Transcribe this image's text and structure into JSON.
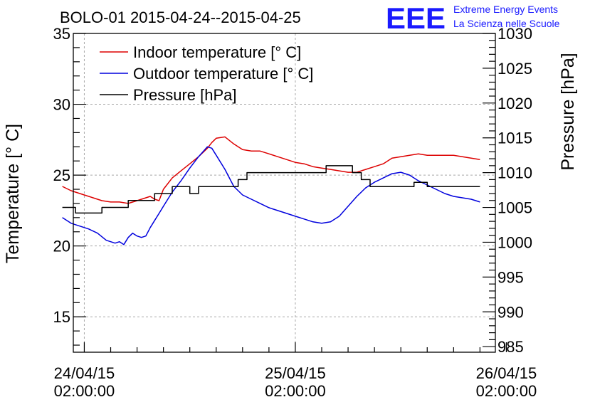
{
  "chart_data": {
    "type": "line",
    "title": "BOLO-01 2015-04-24--2015-04-25",
    "logo": {
      "mark": "EEE",
      "line1": "Extreme Energy Events",
      "line2": "La Scienza nelle Scuole"
    },
    "ylabel": "Temperature [° C]",
    "y2label": "Pressure [hPa]",
    "ylim": [
      12.5,
      35
    ],
    "y2lim": [
      984.2,
      1030
    ],
    "yticks": [
      "15",
      "20",
      "25",
      "30",
      "35"
    ],
    "y2ticks": [
      "985",
      "990",
      "995",
      "1000",
      "1005",
      "1010",
      "1015",
      "1020",
      "1025",
      "1030"
    ],
    "xlim": [
      -1.25,
      46.75
    ],
    "xticks": [
      {
        "x": 0,
        "date": "24/04/15",
        "time": "02:00:00"
      },
      {
        "x": 24,
        "date": "25/04/15",
        "time": "02:00:00"
      },
      {
        "x": 48,
        "date": "26/04/15",
        "time": "02:00:00"
      }
    ],
    "grid": true,
    "legend_position": "top-left",
    "series": [
      {
        "name": "Indoor temperature [° C]",
        "axis": "left",
        "color": "#dd0000",
        "x": [
          -2.5,
          -1.5,
          0,
          1,
          2,
          3,
          4,
          5,
          6,
          7,
          7.5,
          8,
          8.5,
          9,
          10,
          11,
          12,
          13,
          14,
          14.5,
          15,
          16,
          17,
          18,
          19,
          20,
          21,
          22,
          23,
          24,
          25,
          26,
          27,
          28,
          29,
          30,
          31,
          32,
          33,
          34,
          35,
          36,
          37,
          38,
          39,
          40,
          41,
          42,
          43,
          44,
          45
        ],
        "y": [
          24.2,
          23.9,
          23.6,
          23.4,
          23.2,
          23.1,
          23.1,
          23.0,
          23.2,
          23.4,
          23.5,
          23.3,
          23.2,
          24.0,
          24.8,
          25.3,
          25.8,
          26.3,
          26.9,
          27.3,
          27.6,
          27.7,
          27.2,
          26.8,
          26.7,
          26.7,
          26.5,
          26.3,
          26.1,
          25.9,
          25.8,
          25.6,
          25.5,
          25.4,
          25.3,
          25.2,
          25.2,
          25.4,
          25.6,
          25.8,
          26.2,
          26.3,
          26.4,
          26.5,
          26.4,
          26.4,
          26.4,
          26.4,
          26.3,
          26.2,
          26.1
        ]
      },
      {
        "name": "Outdoor temperature [° C]",
        "axis": "left",
        "color": "#0000dd",
        "x": [
          -2.5,
          -1.5,
          -0.5,
          0.5,
          1.5,
          2.5,
          3.5,
          4,
          4.5,
          5,
          5.5,
          6,
          6.5,
          7,
          7.5,
          8,
          8.5,
          9,
          10,
          11,
          12,
          13,
          14,
          14.5,
          15,
          16,
          17,
          18,
          19,
          20,
          21,
          22,
          23,
          24,
          25,
          26,
          27,
          28,
          29,
          30,
          31,
          32,
          33,
          34,
          35,
          36,
          37,
          38,
          39,
          40,
          41,
          42,
          43,
          44,
          45
        ],
        "y": [
          22.0,
          21.6,
          21.4,
          21.2,
          20.9,
          20.4,
          20.2,
          20.3,
          20.1,
          20.6,
          20.9,
          20.7,
          20.6,
          20.7,
          21.3,
          21.8,
          22.3,
          22.8,
          23.8,
          24.6,
          25.5,
          26.3,
          27.0,
          26.9,
          26.4,
          25.4,
          24.2,
          23.6,
          23.3,
          23.0,
          22.7,
          22.5,
          22.3,
          22.1,
          21.9,
          21.7,
          21.6,
          21.7,
          22.1,
          22.8,
          23.5,
          24.1,
          24.5,
          24.8,
          25.1,
          25.2,
          25.0,
          24.6,
          24.3,
          24.0,
          23.7,
          23.5,
          23.4,
          23.3,
          23.1
        ]
      },
      {
        "name": "Pressure [hPa]",
        "axis": "right",
        "color": "#000000",
        "x": [
          -2.5,
          -1,
          -1,
          2,
          2,
          5,
          5,
          8,
          8,
          10,
          10,
          12,
          12,
          13,
          13,
          17.5,
          17.5,
          18.5,
          18.5,
          20,
          20,
          26,
          26,
          27.5,
          27.5,
          30.5,
          30.5,
          31.5,
          31.5,
          32.5,
          32.5,
          36.5,
          36.5,
          37.5,
          37.5,
          39,
          39,
          42.5,
          42.5,
          45
        ],
        "y": [
          1005.0,
          1005.0,
          1004.2,
          1004.2,
          1005.0,
          1005.0,
          1006.0,
          1006.0,
          1007.0,
          1007.0,
          1008.0,
          1008.0,
          1007.0,
          1007.0,
          1008.0,
          1008.0,
          1009.0,
          1009.0,
          1010.0,
          1010.0,
          1010.0,
          1010.0,
          1010.0,
          1010.0,
          1011.0,
          1011.0,
          1010.0,
          1010.0,
          1009.0,
          1009.0,
          1008.0,
          1008.0,
          1008.0,
          1008.0,
          1008.6,
          1008.6,
          1008.0,
          1008.0,
          1008.0,
          1008.0
        ]
      }
    ]
  }
}
